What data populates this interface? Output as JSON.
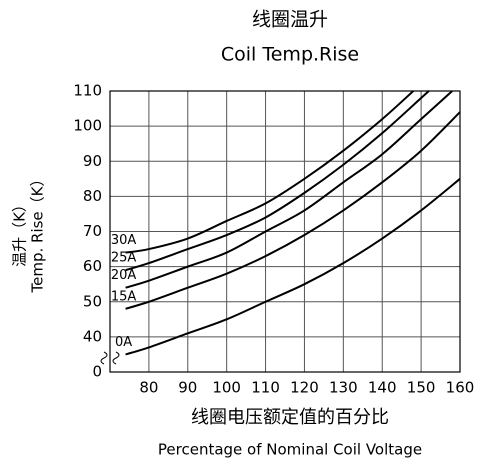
{
  "chart_data": {
    "type": "line",
    "title": "线圈温升",
    "subtitle": "Coil Temp.Rise",
    "x_label": "线圈电压额定值的百分比",
    "x_sublabel": "Percentage of Nominal Coil Voltage",
    "y_label": "温升（K）",
    "y_sublabel": "Temp. Rise（K）",
    "xlim": [
      70,
      160
    ],
    "xticks": [
      80,
      90,
      100,
      110,
      120,
      130,
      140,
      150,
      160
    ],
    "ylim": [
      30,
      110
    ],
    "yticks": [
      {
        "value": 30,
        "label": "0"
      },
      40,
      50,
      60,
      70,
      80,
      90,
      100,
      110
    ],
    "grid": true,
    "series": [
      {
        "name": "30A",
        "color": "#000000",
        "x": [
          74,
          80,
          90,
          100,
          110,
          120,
          130,
          140,
          148
        ],
        "values": [
          64,
          65,
          68,
          73,
          78,
          85,
          93,
          102,
          110
        ]
      },
      {
        "name": "25A",
        "color": "#000000",
        "x": [
          74,
          80,
          90,
          100,
          110,
          120,
          130,
          140,
          150,
          152
        ],
        "values": [
          59,
          61,
          65,
          69,
          74,
          81,
          89,
          98,
          108,
          110
        ]
      },
      {
        "name": "20A",
        "color": "#000000",
        "x": [
          74,
          80,
          90,
          100,
          110,
          120,
          130,
          140,
          150,
          158
        ],
        "values": [
          54,
          56,
          60,
          64,
          70,
          76,
          84,
          92,
          102,
          110
        ]
      },
      {
        "name": "15A",
        "color": "#000000",
        "x": [
          74,
          80,
          90,
          100,
          110,
          120,
          130,
          140,
          150,
          160
        ],
        "values": [
          48,
          50,
          54,
          58,
          63,
          69,
          76,
          84,
          93,
          104
        ]
      },
      {
        "name": "0A",
        "color": "#000000",
        "x": [
          74,
          80,
          90,
          100,
          110,
          120,
          130,
          140,
          150,
          160
        ],
        "values": [
          35,
          37,
          41,
          45,
          50,
          55,
          61,
          68,
          76,
          85
        ]
      }
    ]
  }
}
